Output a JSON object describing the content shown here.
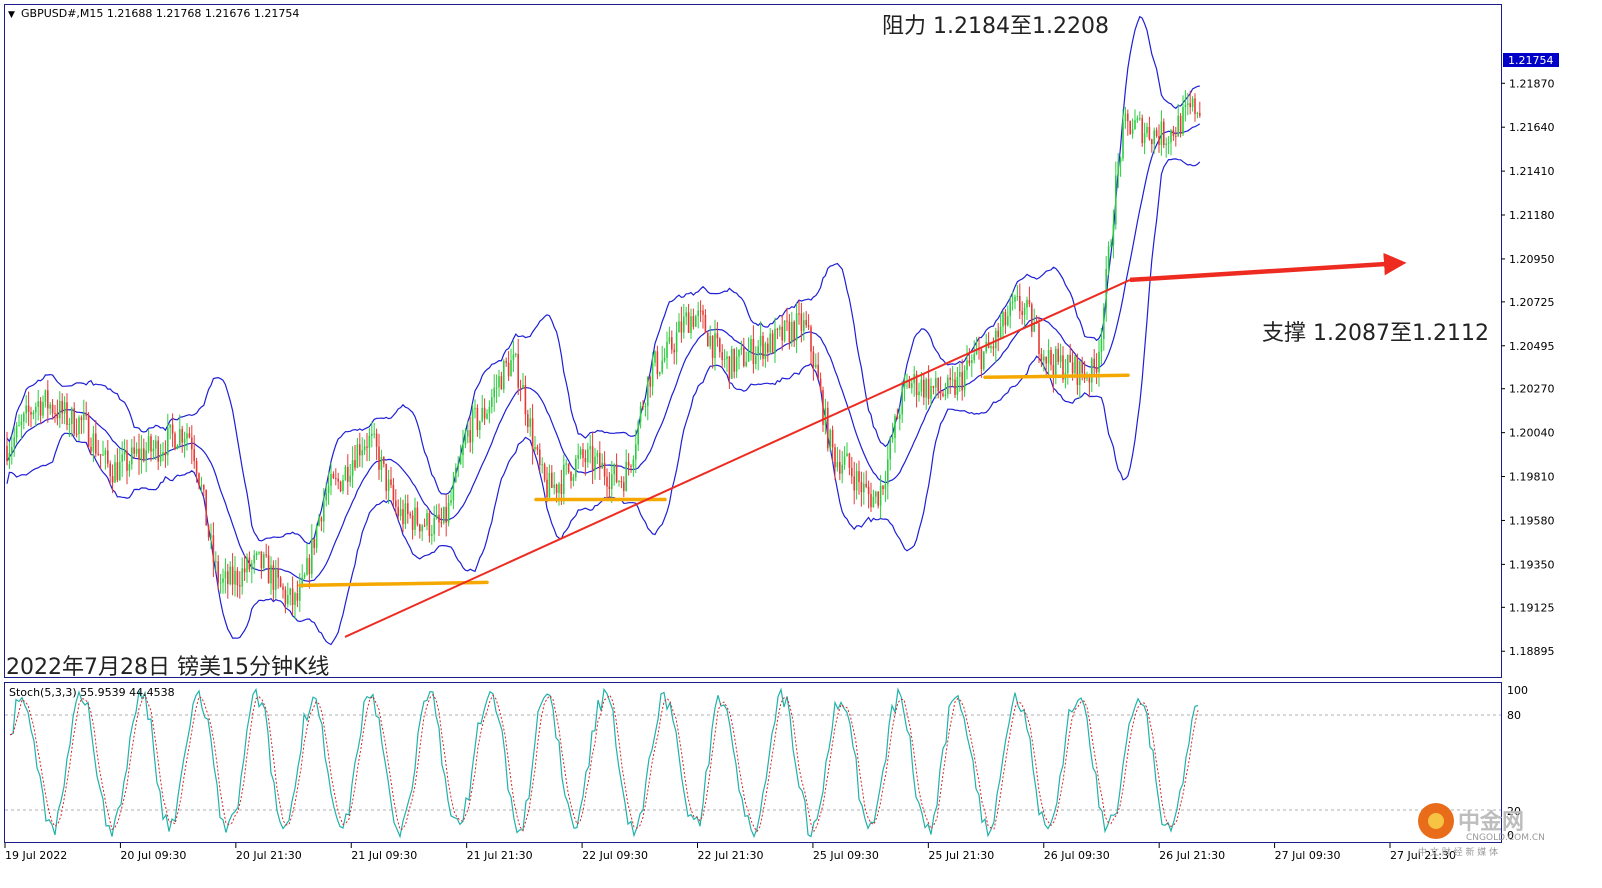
{
  "header": {
    "symbol_line": "GBPUSD#,M15  1.21688 1.21768 1.21676 1.21754"
  },
  "annotations": {
    "resistance": "阻力 1.2184至1.2208",
    "support": "支撑 1.2087至1.2112",
    "caption": "2022年7月28日 镑美15分钟K线"
  },
  "indicator": {
    "label": "Stoch(5,3,3) 55.9539 44.4538",
    "ticks": [
      "100",
      "80",
      "20",
      "0"
    ]
  },
  "watermark": {
    "name": "中金网",
    "domain": "CNGOLD.COM.CN",
    "subtitle": "中 文 财 经 新 媒 体"
  },
  "colors": {
    "up": "#2ecc40",
    "down": "#e53935",
    "band": "#1f1fd6",
    "trend": "#ee2b20",
    "level": "#f5a800",
    "stoch_main": "#20b2aa",
    "stoch_signal": "#d62728",
    "price_badge": "#0000c8"
  },
  "chart_data": {
    "type": "candlestick",
    "title": "GBPUSD#,M15",
    "y_ticks": [
      "1.21870",
      "1.21640",
      "1.21410",
      "1.21180",
      "1.20950",
      "1.20725",
      "1.20495",
      "1.20270",
      "1.20040",
      "1.19810",
      "1.19580",
      "1.19350",
      "1.19125",
      "1.18895"
    ],
    "ylim": [
      1.1876,
      1.2228
    ],
    "current_price": "1.21754",
    "x_ticks": [
      "19 Jul 2022",
      "20 Jul 09:30",
      "20 Jul 21:30",
      "21 Jul 09:30",
      "21 Jul 21:30",
      "22 Jul 09:30",
      "22 Jul 21:30",
      "25 Jul 09:30",
      "25 Jul 21:30",
      "26 Jul 09:30",
      "26 Jul 21:30",
      "27 Jul 09:30",
      "27 Jul 21:30"
    ],
    "price_path": [
      [
        "19 Jul 2022",
        1.1997
      ],
      [
        "19 Jul",
        1.202
      ],
      [
        "20 Jul 09:30",
        1.201
      ],
      [
        "20 Jul",
        1.1985
      ],
      [
        "20 Jul 21:30",
        1.1995
      ],
      [
        "21 Jul",
        1.2005
      ],
      [
        "21 Jul 09:30",
        1.1925
      ],
      [
        "21 Jul",
        1.1935
      ],
      [
        "21 Jul",
        1.1915
      ],
      [
        "21 Jul 21:30",
        1.1975
      ],
      [
        "22 Jul",
        1.2
      ],
      [
        "22 Jul",
        1.196
      ],
      [
        "22 Jul 09:30",
        1.1955
      ],
      [
        "22 Jul",
        1.201
      ],
      [
        "22 Jul",
        1.204
      ],
      [
        "22 Jul 21:30",
        1.1975
      ],
      [
        "22 Jul",
        1.199
      ],
      [
        "25 Jul 09:30",
        1.198
      ],
      [
        "25 Jul",
        1.204
      ],
      [
        "25 Jul",
        1.2065
      ],
      [
        "25 Jul 21:30",
        1.204
      ],
      [
        "25 Jul",
        1.205
      ],
      [
        "26 Jul",
        1.206
      ],
      [
        "26 Jul 09:30",
        1.199
      ],
      [
        "26 Jul",
        1.197
      ],
      [
        "26 Jul",
        1.203
      ],
      [
        "26 Jul 21:30",
        1.2025
      ],
      [
        "27 Jul",
        1.2045
      ],
      [
        "27 Jul 09:30",
        1.207
      ],
      [
        "27 Jul",
        1.204
      ],
      [
        "27 Jul",
        1.2035
      ],
      [
        "27 Jul 21:30",
        1.2165
      ],
      [
        "28 Jul",
        1.216
      ],
      [
        "28 Jul",
        1.2175
      ]
    ],
    "support_trendline": [
      [
        1.1897
      ],
      [
        1.2084
      ]
    ],
    "horizontal_levels": [
      1.1924,
      1.1969,
      1.2033
    ],
    "legend": "none",
    "grid": false
  }
}
